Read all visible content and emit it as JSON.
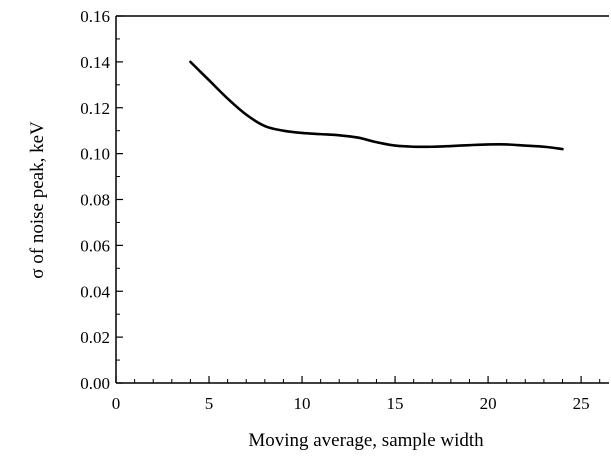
{
  "chart_data": {
    "type": "line",
    "title": "",
    "xlabel": "Moving average, sample width",
    "ylabel": "σ of noise peak, keV",
    "xlim": [
      0,
      26.5
    ],
    "ylim": [
      0,
      0.16
    ],
    "x_ticks": [
      0,
      5,
      10,
      15,
      20,
      25
    ],
    "x_tick_labels": [
      "0",
      "5",
      "10",
      "15",
      "20",
      "25"
    ],
    "y_ticks": [
      0,
      0.02,
      0.04,
      0.06,
      0.08,
      0.1,
      0.12,
      0.14,
      0.16
    ],
    "y_tick_labels": [
      "0.00",
      "0.02",
      "0.04",
      "0.06",
      "0.08",
      "0.10",
      "0.12",
      "0.14",
      "0.16"
    ],
    "grid": false,
    "line_color": "#000000",
    "series": [
      {
        "x": [
          4,
          5,
          6,
          7,
          8,
          9,
          10,
          11,
          12,
          13,
          14,
          15,
          16,
          17,
          18,
          19,
          20,
          21,
          22,
          23,
          24
        ],
        "values": [
          0.14,
          0.132,
          0.124,
          0.117,
          0.112,
          0.11,
          0.109,
          0.1085,
          0.108,
          0.107,
          0.105,
          0.1035,
          0.103,
          0.103,
          0.1033,
          0.1037,
          0.104,
          0.104,
          0.1035,
          0.103,
          0.102
        ]
      }
    ]
  }
}
